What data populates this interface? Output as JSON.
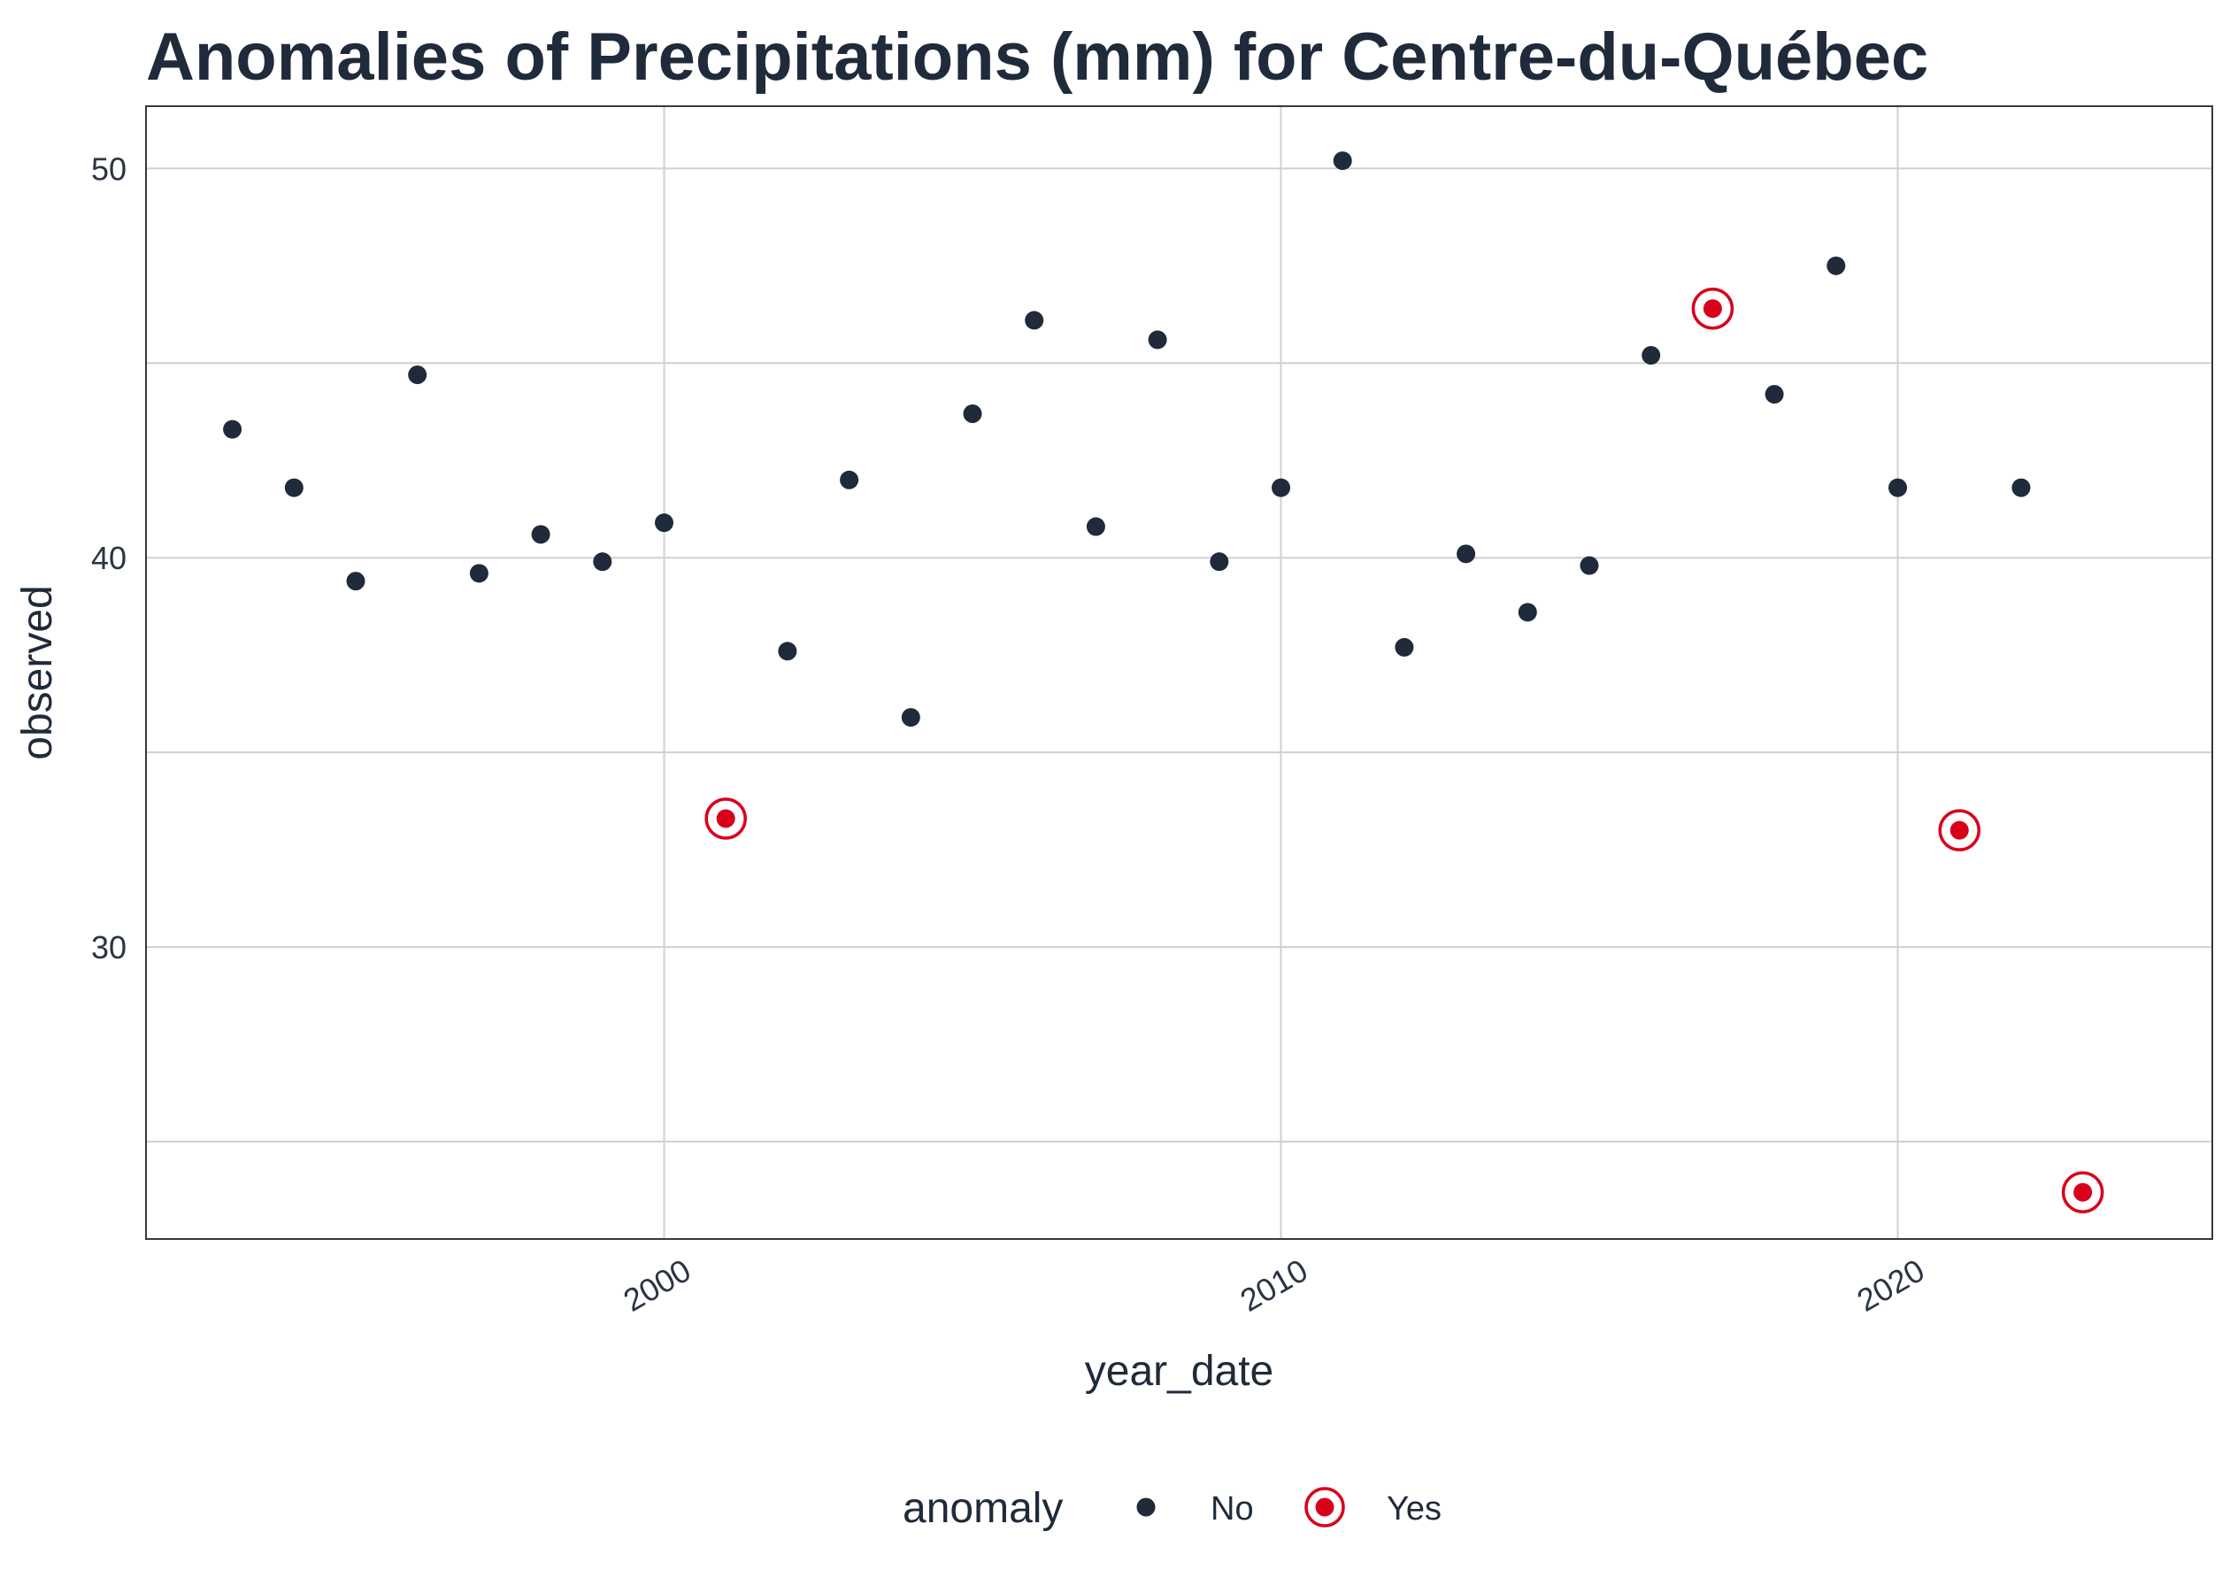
{
  "chart_data": {
    "type": "scatter",
    "title": "Anomalies of Precipitations (mm) for Centre-du-Québec",
    "xlabel": "year_date",
    "ylabel": "observed",
    "xlim": [
      1991.6,
      2025.1
    ],
    "ylim": [
      22.5,
      51.6
    ],
    "x_ticks": [
      {
        "value": 2000,
        "label": "2000"
      },
      {
        "value": 2010,
        "label": "2010"
      },
      {
        "value": 2020,
        "label": "2020"
      }
    ],
    "y_ticks": [
      {
        "value": 30,
        "label": "30"
      },
      {
        "value": 40,
        "label": "40"
      },
      {
        "value": 50,
        "label": "50"
      }
    ],
    "y_minor_gridlines": [
      25,
      35,
      45
    ],
    "x_tick_label_rotation_deg": -30,
    "grid": true,
    "legend": {
      "title": "anomaly",
      "placement": "bottom",
      "entries": [
        {
          "key": "No",
          "label": "No",
          "color": "#1f2a3a"
        },
        {
          "key": "Yes",
          "label": "Yes",
          "color": "#d9001b"
        }
      ]
    },
    "colors": {
      "normal": "#1f2a3a",
      "anomaly": "#d9001b",
      "text": "#1f2a3a"
    },
    "series": [
      {
        "key": "No",
        "points": [
          {
            "x": 1993,
            "y": 43.3
          },
          {
            "x": 1994,
            "y": 41.8
          },
          {
            "x": 1995,
            "y": 39.4
          },
          {
            "x": 1996,
            "y": 44.7
          },
          {
            "x": 1997,
            "y": 39.6
          },
          {
            "x": 1998,
            "y": 40.6
          },
          {
            "x": 1999,
            "y": 39.9
          },
          {
            "x": 2000,
            "y": 40.9
          },
          {
            "x": 2002,
            "y": 37.6
          },
          {
            "x": 2003,
            "y": 42.0
          },
          {
            "x": 2004,
            "y": 35.9
          },
          {
            "x": 2005,
            "y": 43.7
          },
          {
            "x": 2006,
            "y": 46.1
          },
          {
            "x": 2007,
            "y": 40.8
          },
          {
            "x": 2008,
            "y": 45.6
          },
          {
            "x": 2009,
            "y": 39.9
          },
          {
            "x": 2010,
            "y": 41.8
          },
          {
            "x": 2011,
            "y": 50.2
          },
          {
            "x": 2012,
            "y": 37.7
          },
          {
            "x": 2013,
            "y": 40.1
          },
          {
            "x": 2014,
            "y": 38.6
          },
          {
            "x": 2015,
            "y": 39.8
          },
          {
            "x": 2016,
            "y": 45.2
          },
          {
            "x": 2018,
            "y": 44.2
          },
          {
            "x": 2019,
            "y": 47.5
          },
          {
            "x": 2020,
            "y": 41.8
          },
          {
            "x": 2022,
            "y": 41.8
          }
        ]
      },
      {
        "key": "Yes",
        "points": [
          {
            "x": 2001,
            "y": 33.3
          },
          {
            "x": 2017,
            "y": 46.4
          },
          {
            "x": 2021,
            "y": 33.0
          },
          {
            "x": 2023,
            "y": 23.7
          }
        ]
      }
    ]
  }
}
